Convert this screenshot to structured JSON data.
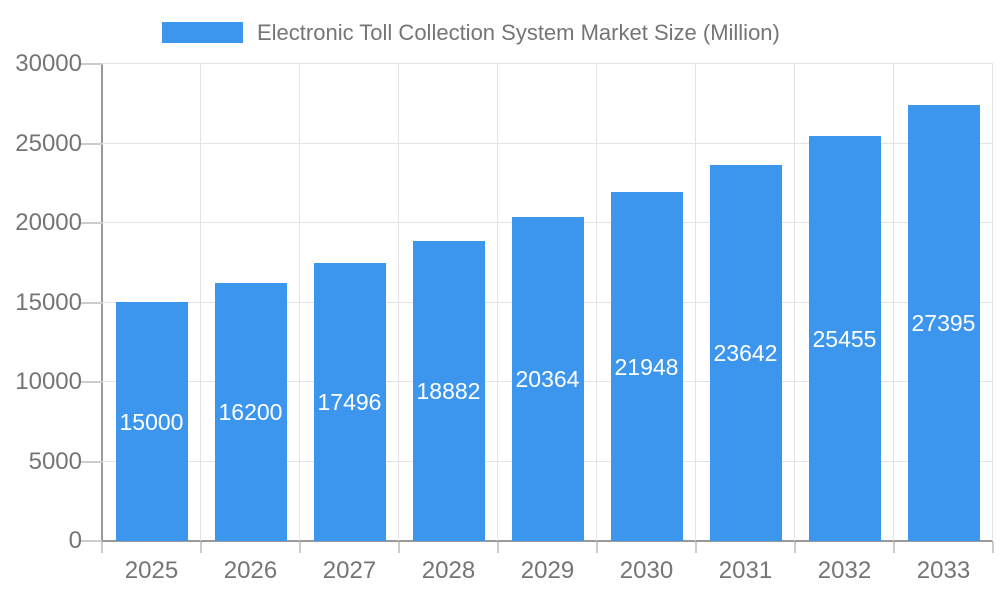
{
  "legend": {
    "items": [
      {
        "label": "Electronic Toll Collection System Market Size (Million)",
        "color": "#3d96ee"
      }
    ]
  },
  "chart_data": {
    "type": "bar",
    "title": "Electronic Toll Collection System Market Size (Million)",
    "categories": [
      "2025",
      "2026",
      "2027",
      "2028",
      "2029",
      "2030",
      "2031",
      "2032",
      "2033"
    ],
    "series": [
      {
        "name": "Electronic Toll Collection System Market Size (Million)",
        "values": [
          15000,
          16200,
          17496,
          18882,
          20364,
          21948,
          23642,
          25455,
          27395
        ]
      }
    ],
    "values": [
      15000,
      16200,
      17496,
      18882,
      20364,
      21948,
      23642,
      25455,
      27395
    ],
    "bar_value_labels": [
      "15000",
      "16200",
      "17496",
      "18882",
      "20364",
      "21948",
      "23642",
      "25455",
      "27395"
    ],
    "xlabel": "",
    "ylabel": "",
    "ylim": [
      0,
      30000
    ],
    "yticks": [
      0,
      5000,
      10000,
      15000,
      20000,
      25000,
      30000
    ],
    "grid": true,
    "legend_position": "top",
    "value_label_position": "inside-center",
    "colors": {
      "bar": "#3d96ee",
      "bar_label": "#ffffff",
      "grid": "#e3e3e3",
      "axis": "#999999",
      "tick": "#cccccc",
      "text": "#757575",
      "background": "#ffffff"
    }
  }
}
